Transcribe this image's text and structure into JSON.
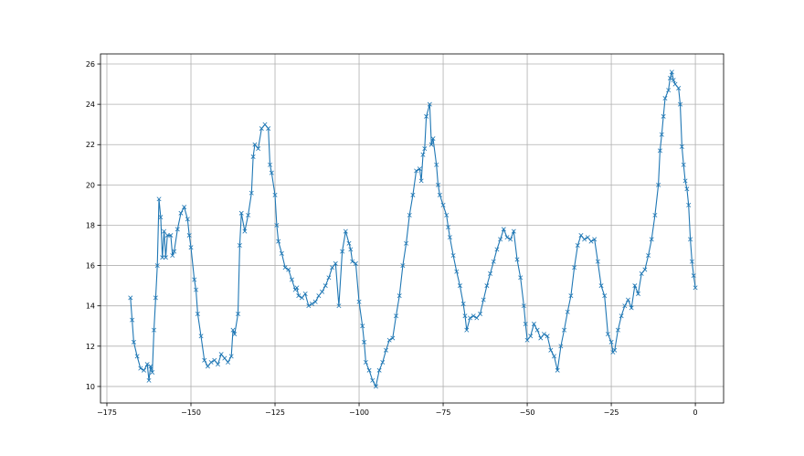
{
  "chart_data": {
    "type": "line",
    "title": "",
    "xlabel": "",
    "ylabel": "",
    "xlim": [
      -176.9,
      8.4
    ],
    "ylim": [
      9.18,
      26.5
    ],
    "grid": true,
    "marker": "x",
    "color": "#1f77b4",
    "xticks": [
      -175,
      -150,
      -125,
      -100,
      -75,
      -50,
      -25,
      0
    ],
    "xtick_labels": [
      "−175",
      "−150",
      "−125",
      "−100",
      "−75",
      "−50",
      "−25",
      "0"
    ],
    "yticks": [
      10,
      12,
      14,
      16,
      18,
      20,
      22,
      24,
      26
    ],
    "ytick_labels": [
      "10",
      "12",
      "14",
      "16",
      "18",
      "20",
      "22",
      "24",
      "26"
    ],
    "series": [
      {
        "x": [
          -168,
          -167.5,
          -167,
          -166,
          -165,
          -164,
          -163,
          -162.5,
          -162,
          -161.5,
          -161,
          -160.5,
          -160,
          -159.5,
          -159,
          -158.5,
          -158,
          -157.5,
          -157,
          -156,
          -155.5,
          -155,
          -154,
          -153,
          -152,
          -151,
          -150.5,
          -150,
          -149,
          -148.5,
          -148,
          -147,
          -146,
          -145,
          -144,
          -143,
          -142,
          -141,
          -140,
          -139,
          -138,
          -137.5,
          -137,
          -136,
          -135.5,
          -135,
          -134,
          -133,
          -132,
          -131.5,
          -131,
          -130,
          -129,
          -128,
          -127,
          -126.5,
          -126,
          -125,
          -124.5,
          -124,
          -123,
          -122,
          -121,
          -120,
          -119,
          -118.5,
          -118,
          -117,
          -116,
          -115,
          -114,
          -113,
          -112,
          -111,
          -110,
          -109,
          -108,
          -107,
          -106,
          -105,
          -104,
          -103,
          -102.5,
          -102,
          -101,
          -100,
          -99,
          -98.5,
          -98,
          -97,
          -96,
          -95,
          -94,
          -93,
          -92,
          -91,
          -90,
          -89,
          -88,
          -87,
          -86,
          -85,
          -84,
          -83,
          -82,
          -81.5,
          -81,
          -80.5,
          -80,
          -79,
          -78.5,
          -78,
          -77,
          -76.5,
          -76,
          -75,
          -74,
          -73.5,
          -73,
          -72,
          -71,
          -70,
          -69,
          -68.5,
          -68,
          -67,
          -66,
          -65,
          -64,
          -63,
          -62,
          -61,
          -60,
          -59,
          -58,
          -57,
          -56,
          -55,
          -54,
          -53,
          -52,
          -51,
          -50.5,
          -50,
          -49,
          -48,
          -47,
          -46,
          -45,
          -44,
          -43,
          -42,
          -41,
          -40,
          -39,
          -38,
          -37,
          -36,
          -35,
          -34,
          -33,
          -32,
          -31,
          -30,
          -29,
          -28,
          -27,
          -26,
          -25,
          -24.5,
          -24,
          -23,
          -22,
          -21,
          -20,
          -19,
          -18,
          -17,
          -16,
          -15,
          -14,
          -13,
          -12,
          -11,
          -10.5,
          -10,
          -9.5,
          -9,
          -8,
          -7.5,
          -7,
          -6.5,
          -6,
          -5,
          -4.5,
          -4,
          -3.5,
          -3,
          -2.5,
          -2,
          -1.5,
          -1,
          -0.5,
          0
        ],
        "y": [
          14.4,
          13.3,
          12.2,
          11.5,
          10.9,
          10.8,
          11.1,
          10.3,
          11.0,
          10.7,
          12.8,
          14.4,
          16.0,
          19.3,
          18.4,
          16.4,
          17.7,
          16.4,
          17.5,
          17.5,
          16.5,
          16.7,
          17.8,
          18.6,
          18.9,
          18.3,
          17.5,
          16.9,
          15.3,
          14.8,
          13.6,
          12.5,
          11.3,
          11.0,
          11.2,
          11.3,
          11.1,
          11.6,
          11.4,
          11.2,
          11.5,
          12.8,
          12.6,
          13.6,
          17.0,
          18.6,
          17.7,
          18.5,
          19.6,
          21.4,
          22.0,
          21.8,
          22.8,
          23.0,
          22.8,
          21.0,
          20.6,
          19.5,
          18.0,
          17.2,
          16.6,
          15.9,
          15.8,
          15.3,
          14.8,
          14.9,
          14.5,
          14.4,
          14.6,
          14.0,
          14.1,
          14.2,
          14.5,
          14.7,
          15.0,
          15.4,
          15.9,
          16.1,
          14.0,
          16.7,
          17.7,
          17.1,
          16.8,
          16.2,
          16.1,
          14.2,
          13.0,
          12.2,
          11.2,
          10.8,
          10.3,
          10.0,
          10.8,
          11.2,
          11.8,
          12.3,
          12.4,
          13.5,
          14.5,
          16.0,
          17.1,
          18.5,
          19.5,
          20.7,
          20.8,
          20.2,
          21.5,
          21.8,
          23.4,
          24.0,
          22.0,
          22.3,
          21.0,
          20.0,
          19.5,
          19.0,
          18.5,
          17.9,
          17.4,
          16.5,
          15.7,
          15.0,
          14.1,
          13.5,
          12.8,
          13.4,
          13.5,
          13.4,
          13.6,
          14.3,
          15.0,
          15.6,
          16.2,
          16.8,
          17.3,
          17.8,
          17.4,
          17.3,
          17.7,
          16.3,
          15.4,
          14.0,
          13.1,
          12.3,
          12.5,
          13.1,
          12.8,
          12.4,
          12.6,
          12.5,
          11.8,
          11.5,
          10.8,
          12.0,
          12.8,
          13.7,
          14.5,
          15.9,
          17.0,
          17.5,
          17.3,
          17.4,
          17.2,
          17.3,
          16.2,
          15.0,
          14.5,
          12.6,
          12.2,
          11.7,
          11.8,
          12.8,
          13.5,
          14.0,
          14.3,
          13.9,
          15.0,
          14.6,
          15.6,
          15.8,
          16.5,
          17.3,
          18.5,
          20.0,
          21.7,
          22.5,
          23.4,
          24.3,
          24.7,
          25.3,
          25.6,
          25.2,
          25.0,
          24.8,
          24.0,
          21.9,
          21.0,
          20.2,
          19.8,
          19.0,
          17.3,
          16.2,
          15.5,
          14.9
        ]
      }
    ]
  }
}
